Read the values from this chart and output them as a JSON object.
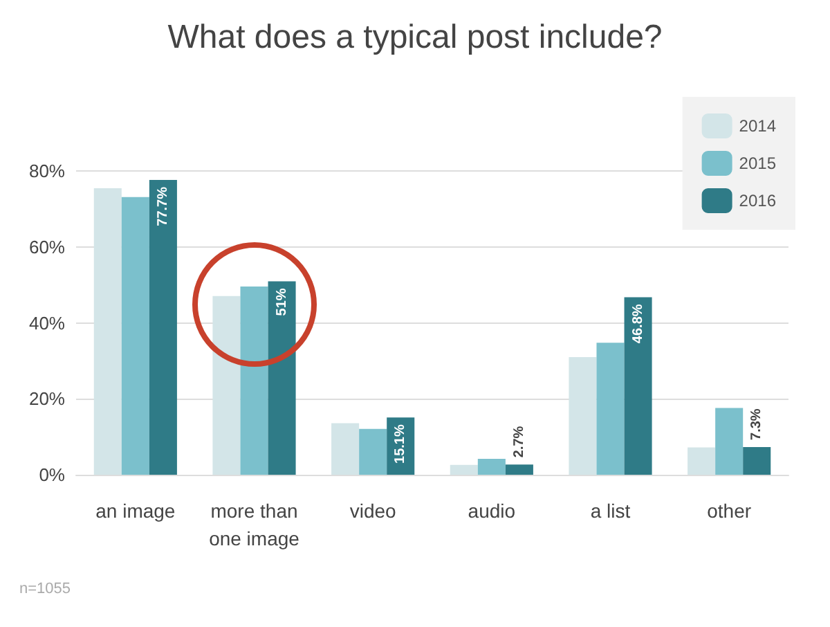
{
  "chart_data": {
    "type": "bar",
    "title": "What does a typical post include?",
    "categories": [
      "an image",
      "more than\none image",
      "video",
      "audio",
      "a list",
      "other"
    ],
    "series": [
      {
        "name": "2014",
        "color": "#d3e5e8",
        "values": [
          75.5,
          47.1,
          13.6,
          2.6,
          31,
          7.2
        ]
      },
      {
        "name": "2015",
        "color": "#7bc0cc",
        "values": [
          73.2,
          49.6,
          12.1,
          4.2,
          34.8,
          17.6
        ]
      },
      {
        "name": "2016",
        "color": "#2f7b87",
        "values": [
          77.7,
          51,
          15.1,
          2.7,
          46.8,
          7.3
        ],
        "value_labels": [
          "77.7%",
          "51%",
          "15.1%",
          "2.7%",
          "46.8%",
          "7.3%"
        ]
      }
    ],
    "ylim": [
      0,
      85
    ],
    "yticks": [
      {
        "value": 0,
        "label": "0%"
      },
      {
        "value": 20,
        "label": "20%"
      },
      {
        "value": 40,
        "label": "40%"
      },
      {
        "value": 60,
        "label": "60%"
      },
      {
        "value": 80,
        "label": "80%"
      }
    ],
    "grid": "y",
    "legend": "top right",
    "annotations": [
      "n=1055"
    ]
  }
}
